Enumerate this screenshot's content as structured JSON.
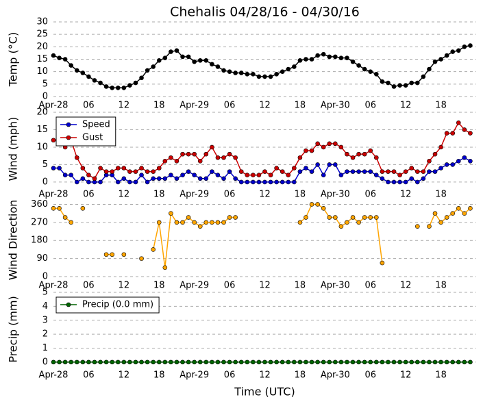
{
  "chart_data": [
    {
      "type": "line",
      "title": "Chehalis 04/28/16 - 04/30/16",
      "ylabel": "Temp (°C)",
      "categories": [
        "Apr-28",
        null,
        null,
        null,
        null,
        null,
        "06",
        null,
        null,
        null,
        null,
        null,
        "12",
        null,
        null,
        null,
        null,
        null,
        "18",
        null,
        null,
        null,
        null,
        null,
        "Apr-29",
        null,
        null,
        null,
        null,
        null,
        "06",
        null,
        null,
        null,
        null,
        null,
        "12",
        null,
        null,
        null,
        null,
        null,
        "18",
        null,
        null,
        null,
        null,
        null,
        "Apr-30",
        null,
        null,
        null,
        null,
        null,
        "06",
        null,
        null,
        null,
        null,
        null,
        "12",
        null,
        null,
        null,
        null,
        null,
        "18",
        null,
        null,
        null,
        null,
        null
      ],
      "ylim": [
        0,
        30
      ],
      "yticks": [
        0,
        5,
        10,
        15,
        20,
        25,
        30
      ],
      "grid": true,
      "series": [
        {
          "color": "#000000",
          "values": [
            16.5,
            15.5,
            15,
            12.5,
            10.5,
            9.5,
            8,
            6.5,
            5.5,
            4,
            3.5,
            3.5,
            3.5,
            4.5,
            5.5,
            7.5,
            10.5,
            12,
            14.5,
            15.5,
            18,
            18.5,
            16,
            16,
            14,
            14.5,
            14.5,
            13,
            12,
            10.5,
            10,
            9.5,
            9.5,
            9,
            9,
            8,
            8,
            8,
            9,
            10,
            11,
            12,
            14.5,
            15,
            15,
            16.5,
            17,
            16,
            16,
            15.5,
            15.5,
            14,
            12.5,
            11,
            10,
            9,
            6,
            5.5,
            4,
            4.5,
            4.5,
            5.5,
            5.5,
            8,
            11,
            14,
            15,
            16.5,
            18,
            18.5,
            20,
            20.5
          ]
        }
      ]
    },
    {
      "type": "line",
      "ylabel": "Wind (mph)",
      "legend": "upper left",
      "categories": [
        "Apr-28",
        null,
        null,
        null,
        null,
        null,
        "06",
        null,
        null,
        null,
        null,
        null,
        "12",
        null,
        null,
        null,
        null,
        null,
        "18",
        null,
        null,
        null,
        null,
        null,
        "Apr-29",
        null,
        null,
        null,
        null,
        null,
        "06",
        null,
        null,
        null,
        null,
        null,
        "12",
        null,
        null,
        null,
        null,
        null,
        "18",
        null,
        null,
        null,
        null,
        null,
        "Apr-30",
        null,
        null,
        null,
        null,
        null,
        "06",
        null,
        null,
        null,
        null,
        null,
        "12",
        null,
        null,
        null,
        null,
        null,
        "18",
        null,
        null,
        null,
        null,
        null
      ],
      "ylim": [
        -1,
        20
      ],
      "yticks": [
        0,
        5,
        10,
        15,
        20
      ],
      "grid": true,
      "series": [
        {
          "name": "Speed",
          "color": "#0000cc",
          "values": [
            4,
            4,
            2,
            2,
            0,
            1,
            0,
            0,
            0,
            2,
            2,
            0,
            1,
            0,
            0,
            2,
            0,
            1,
            1,
            1,
            2,
            1,
            2,
            3,
            2,
            1,
            1,
            3,
            2,
            1,
            3,
            1,
            0,
            0,
            0,
            0,
            0,
            0,
            0,
            0,
            0,
            0,
            3,
            4,
            3,
            5,
            2,
            5,
            5,
            2,
            3,
            3,
            3,
            3,
            3,
            2,
            1,
            0,
            0,
            0,
            0,
            1,
            0,
            1,
            3,
            3,
            4,
            5,
            5,
            6,
            7,
            6
          ]
        },
        {
          "name": "Gust",
          "color": "#cc0000",
          "values": [
            12,
            12,
            10,
            12,
            7,
            4,
            2,
            1,
            4,
            3,
            3,
            4,
            4,
            3,
            3,
            4,
            3,
            3,
            4,
            6,
            7,
            6,
            8,
            8,
            8,
            6,
            8,
            10,
            7,
            7,
            8,
            7,
            3,
            2,
            2,
            2,
            3,
            2,
            4,
            3,
            2,
            4,
            7,
            9,
            9,
            11,
            10,
            11,
            11,
            10,
            8,
            7,
            8,
            8,
            9,
            7,
            3,
            3,
            3,
            2,
            3,
            4,
            3,
            3,
            6,
            8,
            10,
            14,
            14,
            17,
            15,
            14
          ]
        }
      ]
    },
    {
      "type": "line",
      "ylabel": "Wind Direction",
      "categories": [
        "Apr-28",
        null,
        null,
        null,
        null,
        null,
        "06",
        null,
        null,
        null,
        null,
        null,
        "12",
        null,
        null,
        null,
        null,
        null,
        "18",
        null,
        null,
        null,
        null,
        null,
        "Apr-29",
        null,
        null,
        null,
        null,
        null,
        "06",
        null,
        null,
        null,
        null,
        null,
        "12",
        null,
        null,
        null,
        null,
        null,
        "18",
        null,
        null,
        null,
        null,
        null,
        "Apr-30",
        null,
        null,
        null,
        null,
        null,
        "06",
        null,
        null,
        null,
        null,
        null,
        "12",
        null,
        null,
        null,
        null,
        null,
        "18",
        null,
        null,
        null,
        null,
        null
      ],
      "ylim": [
        0,
        365
      ],
      "yticks": [
        0,
        90,
        180,
        270,
        360
      ],
      "grid": true,
      "series": [
        {
          "color": "#ffa500",
          "values": [
            340,
            340,
            295,
            270,
            null,
            340,
            null,
            null,
            null,
            110,
            110,
            null,
            110,
            null,
            null,
            90,
            null,
            135,
            270,
            45,
            315,
            270,
            270,
            295,
            270,
            250,
            270,
            270,
            270,
            270,
            295,
            295,
            null,
            null,
            null,
            null,
            null,
            null,
            null,
            null,
            null,
            null,
            270,
            295,
            360,
            360,
            340,
            295,
            295,
            250,
            270,
            295,
            270,
            295,
            295,
            295,
            68,
            null,
            null,
            null,
            null,
            null,
            250,
            null,
            250,
            315,
            270,
            295,
            315,
            340,
            315,
            340
          ]
        }
      ]
    },
    {
      "type": "line",
      "ylabel": "Precip (mm)",
      "xlabel": "Time (UTC)",
      "legend": "upper left",
      "categories": [
        "Apr-28",
        null,
        null,
        null,
        null,
        null,
        "06",
        null,
        null,
        null,
        null,
        null,
        "12",
        null,
        null,
        null,
        null,
        null,
        "18",
        null,
        null,
        null,
        null,
        null,
        "Apr-29",
        null,
        null,
        null,
        null,
        null,
        "06",
        null,
        null,
        null,
        null,
        null,
        "12",
        null,
        null,
        null,
        null,
        null,
        "18",
        null,
        null,
        null,
        null,
        null,
        "Apr-30",
        null,
        null,
        null,
        null,
        null,
        "06",
        null,
        null,
        null,
        null,
        null,
        "12",
        null,
        null,
        null,
        null,
        null,
        "18",
        null,
        null,
        null,
        null,
        null
      ],
      "ylim": [
        -0.3,
        5
      ],
      "yticks": [
        0,
        1,
        2,
        3,
        4,
        5
      ],
      "grid": true,
      "series": [
        {
          "name": "Precip (0.0 mm)",
          "color": "#006400",
          "values": [
            0,
            0,
            0,
            0,
            0,
            0,
            0,
            0,
            0,
            0,
            0,
            0,
            0,
            0,
            0,
            0,
            0,
            0,
            0,
            0,
            0,
            0,
            0,
            0,
            0,
            0,
            0,
            0,
            0,
            0,
            0,
            0,
            0,
            0,
            0,
            0,
            0,
            0,
            0,
            0,
            0,
            0,
            0,
            0,
            0,
            0,
            0,
            0,
            0,
            0,
            0,
            0,
            0,
            0,
            0,
            0,
            0,
            0,
            0,
            0,
            0,
            0,
            0,
            0,
            0,
            0,
            0,
            0,
            0,
            0,
            0,
            0
          ]
        }
      ]
    }
  ]
}
